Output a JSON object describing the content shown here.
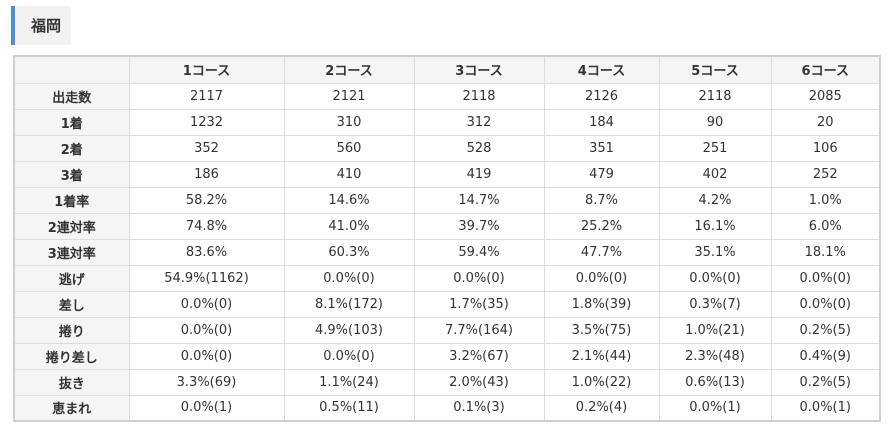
{
  "heading": {
    "title": "福岡"
  },
  "table": {
    "headers": [
      "",
      "1コース",
      "2コース",
      "3コース",
      "4コース",
      "5コース",
      "6コース"
    ],
    "rows": [
      {
        "label": "出走数",
        "cells": [
          "2117",
          "2121",
          "2118",
          "2126",
          "2118",
          "2085"
        ]
      },
      {
        "label": "1着",
        "cells": [
          "1232",
          "310",
          "312",
          "184",
          "90",
          "20"
        ]
      },
      {
        "label": "2着",
        "cells": [
          "352",
          "560",
          "528",
          "351",
          "251",
          "106"
        ]
      },
      {
        "label": "3着",
        "cells": [
          "186",
          "410",
          "419",
          "479",
          "402",
          "252"
        ]
      },
      {
        "label": "1着率",
        "cells": [
          "58.2%",
          "14.6%",
          "14.7%",
          "8.7%",
          "4.2%",
          "1.0%"
        ]
      },
      {
        "label": "2連対率",
        "cells": [
          "74.8%",
          "41.0%",
          "39.7%",
          "25.2%",
          "16.1%",
          "6.0%"
        ]
      },
      {
        "label": "3連対率",
        "cells": [
          "83.6%",
          "60.3%",
          "59.4%",
          "47.7%",
          "35.1%",
          "18.1%"
        ]
      },
      {
        "label": "逃げ",
        "cells": [
          "54.9%(1162)",
          "0.0%(0)",
          "0.0%(0)",
          "0.0%(0)",
          "0.0%(0)",
          "0.0%(0)"
        ]
      },
      {
        "label": "差し",
        "cells": [
          "0.0%(0)",
          "8.1%(172)",
          "1.7%(35)",
          "1.8%(39)",
          "0.3%(7)",
          "0.0%(0)"
        ]
      },
      {
        "label": "捲り",
        "cells": [
          "0.0%(0)",
          "4.9%(103)",
          "7.7%(164)",
          "3.5%(75)",
          "1.0%(21)",
          "0.2%(5)"
        ]
      },
      {
        "label": "捲り差し",
        "cells": [
          "0.0%(0)",
          "0.0%(0)",
          "3.2%(67)",
          "2.1%(44)",
          "2.3%(48)",
          "0.4%(9)"
        ]
      },
      {
        "label": "抜き",
        "cells": [
          "3.3%(69)",
          "1.1%(24)",
          "2.0%(43)",
          "1.0%(22)",
          "0.6%(13)",
          "0.2%(5)"
        ]
      },
      {
        "label": "恵まれ",
        "cells": [
          "0.0%(1)",
          "0.5%(11)",
          "0.1%(3)",
          "0.2%(4)",
          "0.0%(1)",
          "0.0%(1)"
        ]
      }
    ]
  },
  "colors": {
    "accent": "#4a90d9",
    "header_bg": "#f5f5f5",
    "border": "#dddddd"
  }
}
